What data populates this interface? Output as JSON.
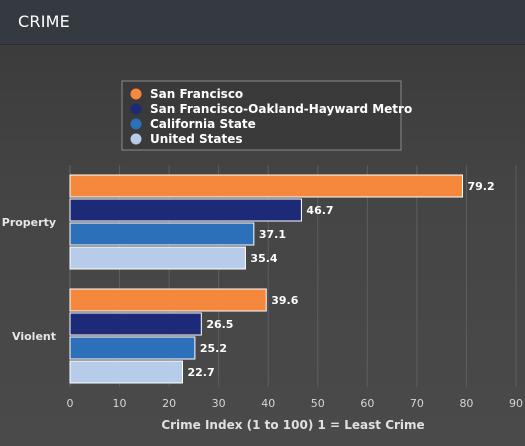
{
  "header": {
    "title": "CRIME"
  },
  "chart_data": {
    "type": "bar",
    "orientation": "horizontal",
    "title": "",
    "xlabel": "Crime Index (1 to 100) 1 = Least Crime",
    "ylabel": "",
    "xlim": [
      0,
      90
    ],
    "xticks": [
      0,
      10,
      20,
      30,
      40,
      50,
      60,
      70,
      80,
      90
    ],
    "grid": true,
    "legend_position": "top-center",
    "categories": [
      "Property",
      "Violent"
    ],
    "series": [
      {
        "name": "San Francisco",
        "color": "#f5883d",
        "values": [
          79.2,
          39.6
        ]
      },
      {
        "name": "San Francisco-Oakland-Hayward Metro",
        "color": "#1d2a77",
        "values": [
          46.7,
          26.5
        ]
      },
      {
        "name": "California State",
        "color": "#2b70b8",
        "values": [
          37.1,
          25.2
        ]
      },
      {
        "name": "United States",
        "color": "#b7cce8",
        "values": [
          35.4,
          22.7
        ]
      }
    ]
  }
}
